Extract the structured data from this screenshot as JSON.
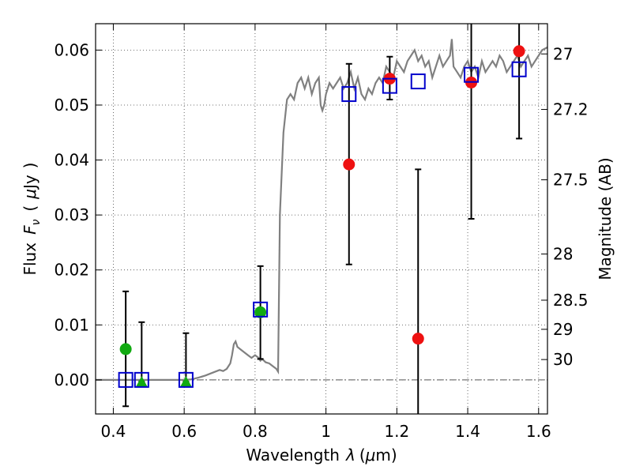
{
  "chart_data": {
    "type": "scatter",
    "xlabel": "Wavelength",
    "xlabel_symbol": "λ",
    "xlabel_unit_prefix": "(",
    "xlabel_unit_mu": "μ",
    "xlabel_unit_suffix": "m)",
    "ylabel_word": "Flux",
    "ylabel_symbol": "F",
    "ylabel_subscript": "ν",
    "ylabel_unit_open": "(",
    "ylabel_unit_mu": "μ",
    "ylabel_unit_rest": "Jy",
    "ylabel_unit_close": ")",
    "right_ylabel": "Magnitude (AB)",
    "xlim": [
      0.35,
      1.625
    ],
    "ylim": [
      -0.0062,
      0.0648
    ],
    "x_ticks": [
      0.4,
      0.6,
      0.8,
      1.0,
      1.2,
      1.4,
      1.6
    ],
    "x_tick_labels": [
      "0.4",
      "0.6",
      "0.8",
      "1",
      "1.2",
      "1.4",
      "1.6"
    ],
    "y_ticks": [
      0.0,
      0.01,
      0.02,
      0.03,
      0.04,
      0.05,
      0.06
    ],
    "y_tick_labels": [
      "0.00",
      "0.01",
      "0.02",
      "0.03",
      "0.04",
      "0.05",
      "0.06"
    ],
    "right_ticks": [
      {
        "flux": 0.0593,
        "label": "27"
      },
      {
        "flux": 0.0492,
        "label": "27.2"
      },
      {
        "flux": 0.0364,
        "label": "27.5"
      },
      {
        "flux": 0.0229,
        "label": "28"
      },
      {
        "flux": 0.0145,
        "label": "28.5"
      },
      {
        "flux": 0.0092,
        "label": "29"
      },
      {
        "flux": 0.0037,
        "label": "30"
      }
    ],
    "grid": true,
    "colors": {
      "model": "#808080",
      "detection": "#ee1111",
      "limit": "#11aa11",
      "model_box": "#0000cc",
      "errorbar": "#000000",
      "zero_line": "#555555"
    },
    "model_spectrum": {
      "x": [
        0.35,
        0.4,
        0.45,
        0.5,
        0.55,
        0.6,
        0.62,
        0.64,
        0.66,
        0.68,
        0.7,
        0.71,
        0.72,
        0.73,
        0.735,
        0.74,
        0.745,
        0.75,
        0.76,
        0.77,
        0.78,
        0.79,
        0.8,
        0.81,
        0.815,
        0.82,
        0.83,
        0.84,
        0.85,
        0.86,
        0.865,
        0.87,
        0.88,
        0.89,
        0.9,
        0.91,
        0.92,
        0.93,
        0.94,
        0.95,
        0.96,
        0.97,
        0.98,
        0.985,
        0.99,
        0.995,
        1.0,
        1.01,
        1.02,
        1.03,
        1.04,
        1.05,
        1.06,
        1.07,
        1.08,
        1.09,
        1.1,
        1.11,
        1.12,
        1.13,
        1.14,
        1.15,
        1.16,
        1.17,
        1.18,
        1.19,
        1.2,
        1.21,
        1.22,
        1.23,
        1.24,
        1.25,
        1.26,
        1.27,
        1.28,
        1.29,
        1.3,
        1.31,
        1.32,
        1.33,
        1.34,
        1.35,
        1.355,
        1.36,
        1.37,
        1.38,
        1.39,
        1.4,
        1.41,
        1.42,
        1.43,
        1.44,
        1.45,
        1.46,
        1.47,
        1.48,
        1.49,
        1.5,
        1.51,
        1.52,
        1.53,
        1.54,
        1.55,
        1.56,
        1.57,
        1.58,
        1.59,
        1.6,
        1.61,
        1.625
      ],
      "y": [
        0.0,
        0.0,
        0.0,
        0.0,
        0.0,
        0.0,
        0.0001,
        0.0004,
        0.0008,
        0.0013,
        0.0018,
        0.0016,
        0.002,
        0.003,
        0.0045,
        0.0065,
        0.007,
        0.006,
        0.0055,
        0.005,
        0.0045,
        0.004,
        0.0045,
        0.004,
        0.0035,
        0.0038,
        0.0032,
        0.003,
        0.0025,
        0.002,
        0.0015,
        0.03,
        0.045,
        0.051,
        0.052,
        0.051,
        0.054,
        0.055,
        0.053,
        0.055,
        0.052,
        0.054,
        0.055,
        0.05,
        0.049,
        0.05,
        0.052,
        0.054,
        0.053,
        0.054,
        0.055,
        0.053,
        0.054,
        0.056,
        0.053,
        0.055,
        0.052,
        0.051,
        0.053,
        0.052,
        0.054,
        0.055,
        0.054,
        0.057,
        0.056,
        0.055,
        0.058,
        0.057,
        0.056,
        0.058,
        0.059,
        0.06,
        0.058,
        0.059,
        0.057,
        0.058,
        0.055,
        0.057,
        0.059,
        0.057,
        0.058,
        0.059,
        0.062,
        0.057,
        0.056,
        0.055,
        0.057,
        0.058,
        0.056,
        0.057,
        0.055,
        0.058,
        0.056,
        0.057,
        0.058,
        0.057,
        0.059,
        0.058,
        0.056,
        0.057,
        0.058,
        0.059,
        0.057,
        0.058,
        0.059,
        0.057,
        0.058,
        0.059,
        0.06,
        0.0605
      ]
    },
    "detections": [
      {
        "x": 1.065,
        "y": 0.0392,
        "yerr_low": 0.0182,
        "yerr_high": 0.0183
      },
      {
        "x": 1.18,
        "y": 0.0548,
        "yerr_low": 0.0038,
        "yerr_high": 0.004
      },
      {
        "x": 1.26,
        "y": 0.0075,
        "yerr_low": 0.0155,
        "yerr_high": 0.0308
      },
      {
        "x": 1.41,
        "y": 0.0541,
        "yerr_low": 0.0248,
        "yerr_high": 0.0119
      },
      {
        "x": 1.545,
        "y": 0.0598,
        "yerr_low": 0.0159,
        "yerr_high": 0.007
      }
    ],
    "limits": [
      {
        "x": 0.435,
        "y": 0.0056,
        "marker": "circle",
        "yerr_low": 0.0104,
        "yerr_high": 0.0105
      },
      {
        "x": 0.48,
        "y": -0.0003,
        "marker": "triangle",
        "yerr_low": 0.0,
        "yerr_high": 0.0108
      },
      {
        "x": 0.605,
        "y": -0.0003,
        "marker": "triangle",
        "yerr_low": 0.0,
        "yerr_high": 0.0088
      },
      {
        "x": 0.815,
        "y": 0.0123,
        "marker": "circle",
        "yerr_low": 0.0085,
        "yerr_high": 0.0084
      }
    ],
    "model_boxes": [
      {
        "x": 0.435,
        "y": 0.0
      },
      {
        "x": 0.48,
        "y": 0.0
      },
      {
        "x": 0.605,
        "y": 0.0
      },
      {
        "x": 0.815,
        "y": 0.0128
      },
      {
        "x": 1.065,
        "y": 0.052
      },
      {
        "x": 1.18,
        "y": 0.0535
      },
      {
        "x": 1.26,
        "y": 0.0543
      },
      {
        "x": 1.41,
        "y": 0.0555
      },
      {
        "x": 1.545,
        "y": 0.0565
      }
    ]
  }
}
